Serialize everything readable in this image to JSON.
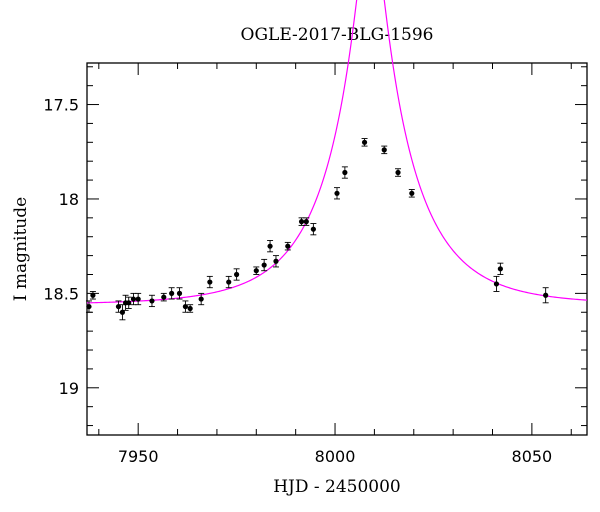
{
  "chart_data": {
    "type": "scatter",
    "title": "OGLE-2017-BLG-1596",
    "xlabel": "HJD - 2450000",
    "ylabel": "I magnitude",
    "xlim": [
      7937,
      8064
    ],
    "ylim": [
      19.25,
      17.28
    ],
    "y_inverted": true,
    "grid": false,
    "legend": "none",
    "x_ticks": [
      {
        "value": 7950,
        "label": "7950"
      },
      {
        "value": 8000,
        "label": "8000"
      },
      {
        "value": 8050,
        "label": "8050"
      }
    ],
    "y_ticks": [
      {
        "value": 17.5,
        "label": "17.5"
      },
      {
        "value": 18,
        "label": "18"
      },
      {
        "value": 18.5,
        "label": "18.5"
      },
      {
        "value": 19,
        "label": "19"
      }
    ],
    "colors": {
      "points": "#000000",
      "model": "#ff00ff"
    },
    "model": {
      "t0": 8009,
      "u0": 0.15,
      "tE": 20,
      "I_source": 18.56
    },
    "series": [
      {
        "kind": "points",
        "points": [
          {
            "x": 7937.5,
            "y": 18.57,
            "err": 0.03
          },
          {
            "x": 7938.5,
            "y": 18.51,
            "err": 0.02
          },
          {
            "x": 7945.0,
            "y": 18.57,
            "err": 0.03
          },
          {
            "x": 7946.0,
            "y": 18.6,
            "err": 0.04
          },
          {
            "x": 7946.8,
            "y": 18.55,
            "err": 0.04
          },
          {
            "x": 7947.6,
            "y": 18.55,
            "err": 0.03
          },
          {
            "x": 7948.8,
            "y": 18.53,
            "err": 0.03
          },
          {
            "x": 7950.0,
            "y": 18.53,
            "err": 0.03
          },
          {
            "x": 7953.5,
            "y": 18.54,
            "err": 0.03
          },
          {
            "x": 7956.5,
            "y": 18.52,
            "err": 0.02
          },
          {
            "x": 7958.5,
            "y": 18.5,
            "err": 0.03
          },
          {
            "x": 7960.5,
            "y": 18.5,
            "err": 0.03
          },
          {
            "x": 7962.0,
            "y": 18.57,
            "err": 0.03
          },
          {
            "x": 7963.2,
            "y": 18.58,
            "err": 0.02
          },
          {
            "x": 7966.0,
            "y": 18.53,
            "err": 0.03
          },
          {
            "x": 7968.2,
            "y": 18.44,
            "err": 0.03
          },
          {
            "x": 7973.0,
            "y": 18.44,
            "err": 0.03
          },
          {
            "x": 7975.0,
            "y": 18.4,
            "err": 0.03
          },
          {
            "x": 7980.0,
            "y": 18.38,
            "err": 0.02
          },
          {
            "x": 7982.0,
            "y": 18.35,
            "err": 0.03
          },
          {
            "x": 7983.5,
            "y": 18.25,
            "err": 0.03
          },
          {
            "x": 7985.0,
            "y": 18.33,
            "err": 0.03
          },
          {
            "x": 7988.0,
            "y": 18.25,
            "err": 0.02
          },
          {
            "x": 7991.5,
            "y": 18.12,
            "err": 0.02
          },
          {
            "x": 7992.7,
            "y": 18.12,
            "err": 0.02
          },
          {
            "x": 7994.5,
            "y": 18.16,
            "err": 0.03
          },
          {
            "x": 8000.5,
            "y": 17.97,
            "err": 0.03
          },
          {
            "x": 8002.5,
            "y": 17.86,
            "err": 0.03
          },
          {
            "x": 8007.5,
            "y": 17.7,
            "err": 0.02
          },
          {
            "x": 8012.5,
            "y": 17.74,
            "err": 0.02
          },
          {
            "x": 8016.0,
            "y": 17.86,
            "err": 0.02
          },
          {
            "x": 8019.5,
            "y": 17.97,
            "err": 0.02
          },
          {
            "x": 8041.0,
            "y": 18.45,
            "err": 0.04
          },
          {
            "x": 8042.0,
            "y": 18.37,
            "err": 0.03
          },
          {
            "x": 8053.5,
            "y": 18.51,
            "err": 0.04
          }
        ]
      }
    ]
  }
}
